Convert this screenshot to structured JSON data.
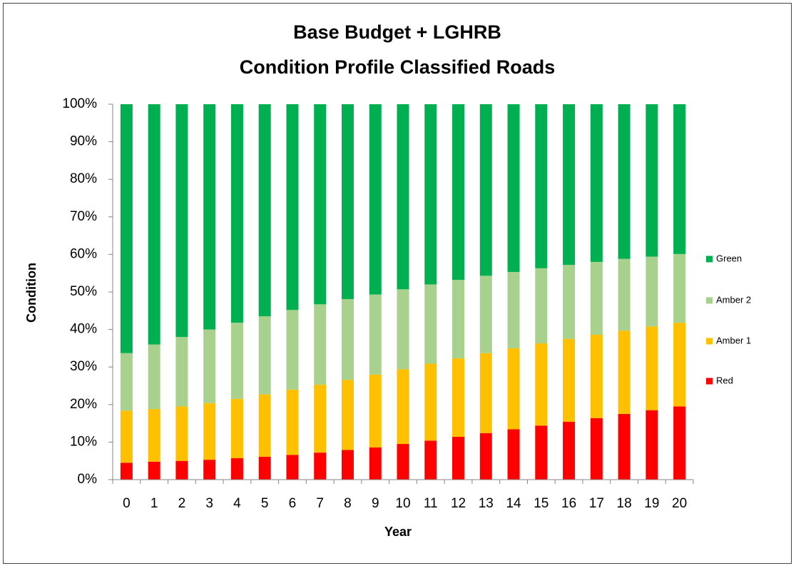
{
  "chart_data": {
    "type": "stacked_bar",
    "title": [
      "Base Budget + LGHRB",
      "Condition Profile Classified Roads"
    ],
    "x_label": "Year",
    "y_label": "Condition",
    "categories": [
      "0",
      "1",
      "2",
      "3",
      "4",
      "5",
      "6",
      "7",
      "8",
      "9",
      "10",
      "11",
      "12",
      "13",
      "14",
      "15",
      "16",
      "17",
      "18",
      "19",
      "20"
    ],
    "series": [
      {
        "name": "Red",
        "color": "#ff0000",
        "values": [
          4.5,
          4.8,
          5.0,
          5.3,
          5.7,
          6.1,
          6.6,
          7.2,
          7.9,
          8.6,
          9.5,
          10.4,
          11.4,
          12.4,
          13.4,
          14.4,
          15.4,
          16.4,
          17.5,
          18.5,
          19.5
        ]
      },
      {
        "name": "Amber 1",
        "color": "#ffc000",
        "values": [
          13.9,
          14.0,
          14.5,
          15.1,
          15.8,
          16.6,
          17.4,
          18.1,
          18.7,
          19.4,
          19.9,
          20.5,
          20.9,
          21.3,
          21.6,
          21.9,
          22.1,
          22.2,
          22.2,
          22.3,
          22.3
        ]
      },
      {
        "name": "Amber 2",
        "color": "#a9d18e",
        "values": [
          15.3,
          17.2,
          18.5,
          19.6,
          20.3,
          20.8,
          21.2,
          21.4,
          21.5,
          21.3,
          21.3,
          21.1,
          20.9,
          20.6,
          20.3,
          20.0,
          19.7,
          19.4,
          19.1,
          18.6,
          18.3
        ]
      },
      {
        "name": "Green",
        "color": "#00b050",
        "values": [
          66.3,
          64.0,
          62.0,
          60.0,
          58.2,
          56.5,
          54.8,
          53.3,
          51.9,
          50.7,
          49.3,
          48.0,
          46.8,
          45.7,
          44.7,
          43.7,
          42.8,
          42.0,
          41.2,
          40.6,
          39.9
        ]
      }
    ],
    "ylim": [
      0,
      100
    ],
    "yticks": [
      {
        "value": 0,
        "label": "0%"
      },
      {
        "value": 10,
        "label": "10%"
      },
      {
        "value": 20,
        "label": "20%"
      },
      {
        "value": 30,
        "label": "30%"
      },
      {
        "value": 40,
        "label": "40%"
      },
      {
        "value": 50,
        "label": "50%"
      },
      {
        "value": 60,
        "label": "60%"
      },
      {
        "value": 70,
        "label": "70%"
      },
      {
        "value": 80,
        "label": "80%"
      },
      {
        "value": 90,
        "label": "90%"
      },
      {
        "value": 100,
        "label": "100%"
      }
    ],
    "legend": "right"
  }
}
